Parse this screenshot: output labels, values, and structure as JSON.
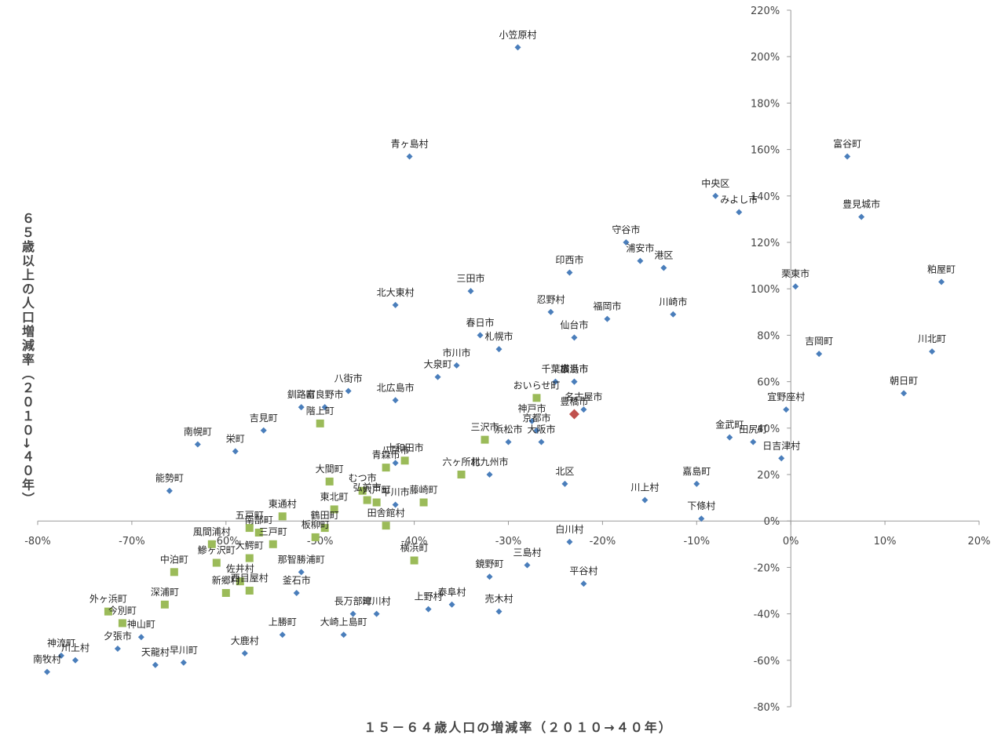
{
  "chart_data": {
    "type": "scatter",
    "title": "",
    "xlabel": "１５－６４歳人口の増減率（２０１０→４０年）",
    "ylabel": "６５歳以上の人口増減率（２０１０→４０年）",
    "xlim": [
      -80,
      20
    ],
    "ylim": [
      -80,
      220
    ],
    "x_ticks": [
      "-80%",
      "-70%",
      "-60%",
      "-50%",
      "-40%",
      "-30%",
      "-20%",
      "-10%",
      "0%",
      "10%",
      "20%"
    ],
    "y_ticks": [
      "-80%",
      "-60%",
      "-40%",
      "-20%",
      "0%",
      "20%",
      "40%",
      "60%",
      "80%",
      "100%",
      "120%",
      "140%",
      "160%",
      "180%",
      "200%",
      "220%"
    ],
    "colors": {
      "blue": "#4a7ebb",
      "green": "#9bbb59",
      "red": "#c0504d",
      "axis": "#999999"
    },
    "series": [
      {
        "marker": "diamond",
        "color": "#4a7ebb",
        "points": [
          {
            "label": "小笠原村",
            "x": -29,
            "y": 204
          },
          {
            "label": "青ヶ島村",
            "x": -40.5,
            "y": 157
          },
          {
            "label": "富谷町",
            "x": 6,
            "y": 157
          },
          {
            "label": "中央区",
            "x": -8,
            "y": 140
          },
          {
            "label": "みよし市",
            "x": -5.5,
            "y": 133
          },
          {
            "label": "豊見城市",
            "x": 7.5,
            "y": 131
          },
          {
            "label": "守谷市",
            "x": -17.5,
            "y": 120
          },
          {
            "label": "浦安市",
            "x": -16,
            "y": 112
          },
          {
            "label": "港区",
            "x": -13.5,
            "y": 109
          },
          {
            "label": "印西市",
            "x": -23.5,
            "y": 107
          },
          {
            "label": "粕屋町",
            "x": 16,
            "y": 103
          },
          {
            "label": "栗東市",
            "x": 0.5,
            "y": 101
          },
          {
            "label": "三田市",
            "x": -34,
            "y": 99
          },
          {
            "label": "北大東村",
            "x": -42,
            "y": 93
          },
          {
            "label": "忍野村",
            "x": -25.5,
            "y": 90
          },
          {
            "label": "福岡市",
            "x": -19.5,
            "y": 87
          },
          {
            "label": "川崎市",
            "x": -12.5,
            "y": 89
          },
          {
            "label": "春日市",
            "x": -33,
            "y": 80
          },
          {
            "label": "札幌市",
            "x": -31,
            "y": 74
          },
          {
            "label": "仙台市",
            "x": -23,
            "y": 79
          },
          {
            "label": "吉岡町",
            "x": 3,
            "y": 72
          },
          {
            "label": "川北町",
            "x": 15,
            "y": 73
          },
          {
            "label": "市川市",
            "x": -35.5,
            "y": 67
          },
          {
            "label": "大泉町",
            "x": -37.5,
            "y": 62
          },
          {
            "label": "横浜市",
            "x": -23,
            "y": 60
          },
          {
            "label": "千葉市",
            "x": -25,
            "y": 60
          },
          {
            "label": "広島市",
            "x": -23,
            "y": 60
          },
          {
            "label": "八街市",
            "x": -47,
            "y": 56
          },
          {
            "label": "北広島市",
            "x": -42,
            "y": 52
          },
          {
            "label": "朝日町",
            "x": 12,
            "y": 55
          },
          {
            "label": "名古屋市",
            "x": -22,
            "y": 48
          },
          {
            "label": "釧路町",
            "x": -52,
            "y": 49
          },
          {
            "label": "富良野市",
            "x": -49.5,
            "y": 49
          },
          {
            "label": "宜野座村",
            "x": -0.5,
            "y": 48
          },
          {
            "label": "吉見町",
            "x": -56,
            "y": 39
          },
          {
            "label": "神戸市",
            "x": -27.5,
            "y": 43
          },
          {
            "label": "京都市",
            "x": -27,
            "y": 39
          },
          {
            "label": "大阪市",
            "x": -26.5,
            "y": 34
          },
          {
            "label": "浜松市",
            "x": -30,
            "y": 34
          },
          {
            "label": "金武町",
            "x": -6.5,
            "y": 36
          },
          {
            "label": "田尻町",
            "x": -4,
            "y": 34
          },
          {
            "label": "日吉津村",
            "x": -1,
            "y": 27
          },
          {
            "label": "南幌町",
            "x": -63,
            "y": 33
          },
          {
            "label": "栄町",
            "x": -59,
            "y": 30
          },
          {
            "label": "八戸市",
            "x": -42,
            "y": 25
          },
          {
            "label": "北九州市",
            "x": -32,
            "y": 20
          },
          {
            "label": "北区",
            "x": -24,
            "y": 16
          },
          {
            "label": "嘉島町",
            "x": -10,
            "y": 16
          },
          {
            "label": "能勢町",
            "x": -66,
            "y": 13
          },
          {
            "label": "川上村",
            "x": -15.5,
            "y": 9
          },
          {
            "label": "下條村",
            "x": -9.5,
            "y": 1
          },
          {
            "label": "平川市",
            "x": -42,
            "y": 7
          },
          {
            "label": "白川村",
            "x": -23.5,
            "y": -9
          },
          {
            "label": "三島村",
            "x": -28,
            "y": -19
          },
          {
            "label": "鏡野町",
            "x": -32,
            "y": -24
          },
          {
            "label": "平谷村",
            "x": -22,
            "y": -27
          },
          {
            "label": "釜石市",
            "x": -52.5,
            "y": -31
          },
          {
            "label": "那智勝浦町",
            "x": -52,
            "y": -22
          },
          {
            "label": "売木村",
            "x": -31,
            "y": -39
          },
          {
            "label": "上野村",
            "x": -38.5,
            "y": -38
          },
          {
            "label": "泰阜村",
            "x": -36,
            "y": -36
          },
          {
            "label": "長万部町",
            "x": -46.5,
            "y": -40
          },
          {
            "label": "津川村",
            "x": -44,
            "y": -40
          },
          {
            "label": "大崎上島町",
            "x": -47.5,
            "y": -49
          },
          {
            "label": "上勝町",
            "x": -54,
            "y": -49
          },
          {
            "label": "大鹿村",
            "x": -58,
            "y": -57
          },
          {
            "label": "夕張市",
            "x": -71.5,
            "y": -55
          },
          {
            "label": "神山町",
            "x": -69,
            "y": -50
          },
          {
            "label": "川上村",
            "x": -76,
            "y": -60
          },
          {
            "label": "神流町",
            "x": -77.5,
            "y": -58
          },
          {
            "label": "南牧村",
            "x": -79,
            "y": -65
          },
          {
            "label": "天龍村",
            "x": -67.5,
            "y": -62
          },
          {
            "label": "早川町",
            "x": -64.5,
            "y": -61
          }
        ]
      },
      {
        "marker": "square",
        "color": "#9bbb59",
        "points": [
          {
            "label": "おいらせ町",
            "x": -27,
            "y": 53
          },
          {
            "label": "階上町",
            "x": -50,
            "y": 42
          },
          {
            "label": "三沢市",
            "x": -32.5,
            "y": 35
          },
          {
            "label": "十和田市",
            "x": -41,
            "y": 26
          },
          {
            "label": "青森市",
            "x": -43,
            "y": 23
          },
          {
            "label": "六ヶ所村",
            "x": -35,
            "y": 20
          },
          {
            "label": "大間町",
            "x": -49,
            "y": 17
          },
          {
            "label": "むつ市",
            "x": -45.5,
            "y": 13
          },
          {
            "label": "弘前市",
            "x": -45,
            "y": 9
          },
          {
            "label": "六戸町",
            "x": -44,
            "y": 8
          },
          {
            "label": "藤崎町",
            "x": -39,
            "y": 8
          },
          {
            "label": "東北町",
            "x": -48.5,
            "y": 5
          },
          {
            "label": "東通村",
            "x": -54,
            "y": 2
          },
          {
            "label": "五戸町",
            "x": -57.5,
            "y": -3
          },
          {
            "label": "南部町",
            "x": -56.5,
            "y": -5
          },
          {
            "label": "鶴田町",
            "x": -49.5,
            "y": -3
          },
          {
            "label": "田舎館村",
            "x": -43,
            "y": -2
          },
          {
            "label": "風間浦村",
            "x": -61.5,
            "y": -10
          },
          {
            "label": "三戸町",
            "x": -55,
            "y": -10
          },
          {
            "label": "中泊町",
            "x": -65.5,
            "y": -22
          },
          {
            "label": "板柳町",
            "x": -50.5,
            "y": -7
          },
          {
            "label": "横浜町",
            "x": -40,
            "y": -17
          },
          {
            "label": "鰺ヶ沢町",
            "x": -61,
            "y": -18
          },
          {
            "label": "大鰐町",
            "x": -57.5,
            "y": -16
          },
          {
            "label": "佐井村",
            "x": -58.5,
            "y": -26
          },
          {
            "label": "新郷村",
            "x": -60,
            "y": -31
          },
          {
            "label": "西目屋村",
            "x": -57.5,
            "y": -30
          },
          {
            "label": "深浦町",
            "x": -66.5,
            "y": -36
          },
          {
            "label": "外ヶ浜町",
            "x": -72.5,
            "y": -39
          },
          {
            "label": "今別町",
            "x": -71,
            "y": -44
          }
        ]
      },
      {
        "marker": "diamond",
        "color": "#c0504d",
        "points": [
          {
            "label": "豊橋市",
            "x": -23,
            "y": 46
          }
        ]
      }
    ]
  }
}
